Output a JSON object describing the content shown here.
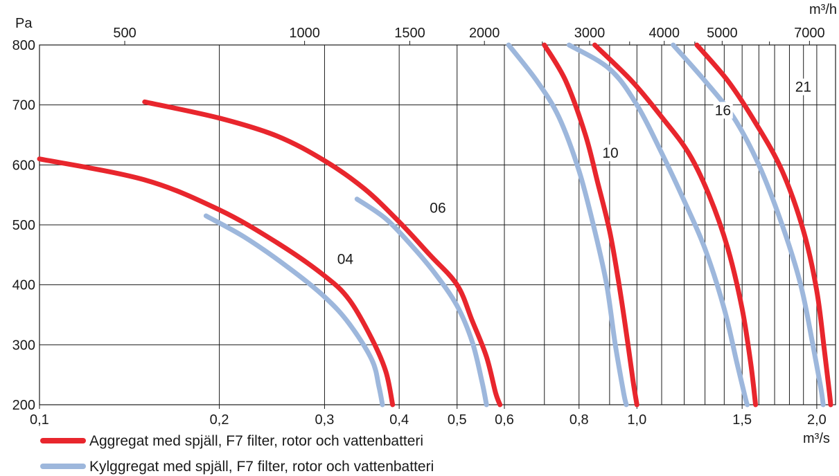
{
  "chart_data": {
    "type": "line",
    "x_scale": "log",
    "xlim": [
      0.1,
      2.15
    ],
    "ylim": [
      200,
      800
    ],
    "grid": true,
    "x_unit": "m³/s",
    "y_unit": "Pa",
    "x2_unit": "m³/h",
    "x_ticks": [
      {
        "value": 0.1,
        "label": "0,1"
      },
      {
        "value": 0.2,
        "label": "0,2"
      },
      {
        "value": 0.3,
        "label": "0,3"
      },
      {
        "value": 0.4,
        "label": "0,4"
      },
      {
        "value": 0.5,
        "label": "0,5"
      },
      {
        "value": 0.6,
        "label": "0,6"
      },
      {
        "value": 0.8,
        "label": "0,8"
      },
      {
        "value": 1.0,
        "label": "1,0"
      },
      {
        "value": 1.5,
        "label": "1,5"
      },
      {
        "value": 2.0,
        "label": "2,0"
      }
    ],
    "x_minor_ticks": [
      0.7,
      0.9,
      1.1,
      1.2,
      1.3,
      1.4,
      1.6,
      1.7,
      1.8,
      1.9
    ],
    "y_ticks": [
      {
        "value": 200,
        "label": "200"
      },
      {
        "value": 300,
        "label": "300"
      },
      {
        "value": 400,
        "label": "400"
      },
      {
        "value": 500,
        "label": "500"
      },
      {
        "value": 600,
        "label": "600"
      },
      {
        "value": 700,
        "label": "700"
      },
      {
        "value": 800,
        "label": "800"
      }
    ],
    "x2_ticks": [
      {
        "value": 500,
        "label": "500"
      },
      {
        "value": 1000,
        "label": "1000"
      },
      {
        "value": 1500,
        "label": "1500"
      },
      {
        "value": 2000,
        "label": "2000"
      },
      {
        "value": 3000,
        "label": "3000"
      },
      {
        "value": 4000,
        "label": "4000"
      },
      {
        "value": 5000,
        "label": "5000"
      },
      {
        "value": 7000,
        "label": "7000"
      }
    ],
    "x2_minor_ticks": [
      2500,
      3500,
      4500,
      6000
    ],
    "series": [
      {
        "group": "aggregat",
        "color": "#e8262d",
        "tag": "04",
        "points": [
          [
            0.1,
            610
          ],
          [
            0.15,
            575
          ],
          [
            0.2,
            525
          ],
          [
            0.25,
            470
          ],
          [
            0.3,
            415
          ],
          [
            0.33,
            375
          ],
          [
            0.36,
            310
          ],
          [
            0.38,
            255
          ],
          [
            0.39,
            200
          ]
        ]
      },
      {
        "group": "kylaggregat",
        "color": "#9db7dc",
        "tag": "04",
        "points": [
          [
            0.19,
            515
          ],
          [
            0.22,
            480
          ],
          [
            0.26,
            430
          ],
          [
            0.3,
            380
          ],
          [
            0.33,
            335
          ],
          [
            0.36,
            275
          ],
          [
            0.37,
            230
          ],
          [
            0.375,
            200
          ]
        ]
      },
      {
        "group": "aggregat",
        "color": "#e8262d",
        "tag": "06",
        "points": [
          [
            0.15,
            705
          ],
          [
            0.2,
            678
          ],
          [
            0.25,
            648
          ],
          [
            0.3,
            607
          ],
          [
            0.35,
            560
          ],
          [
            0.4,
            505
          ],
          [
            0.45,
            450
          ],
          [
            0.5,
            400
          ],
          [
            0.53,
            340
          ],
          [
            0.56,
            280
          ],
          [
            0.58,
            220
          ],
          [
            0.59,
            200
          ]
        ]
      },
      {
        "group": "kylaggregat",
        "color": "#9db7dc",
        "tag": "06",
        "points": [
          [
            0.34,
            543
          ],
          [
            0.38,
            510
          ],
          [
            0.42,
            465
          ],
          [
            0.46,
            418
          ],
          [
            0.5,
            365
          ],
          [
            0.53,
            305
          ],
          [
            0.55,
            240
          ],
          [
            0.56,
            200
          ]
        ]
      },
      {
        "group": "kylaggregat",
        "color": "#9db7dc",
        "tag": "10",
        "points": [
          [
            0.61,
            800
          ],
          [
            0.68,
            740
          ],
          [
            0.74,
            680
          ],
          [
            0.8,
            590
          ],
          [
            0.85,
            490
          ],
          [
            0.89,
            400
          ],
          [
            0.92,
            300
          ],
          [
            0.95,
            220
          ],
          [
            0.96,
            200
          ]
        ]
      },
      {
        "group": "aggregat",
        "color": "#e8262d",
        "tag": "10",
        "points": [
          [
            0.7,
            800
          ],
          [
            0.76,
            740
          ],
          [
            0.82,
            650
          ],
          [
            0.86,
            570
          ],
          [
            0.9,
            490
          ],
          [
            0.93,
            410
          ],
          [
            0.96,
            320
          ],
          [
            0.985,
            240
          ],
          [
            1.0,
            200
          ]
        ]
      },
      {
        "group": "kylaggregat",
        "color": "#9db7dc",
        "tag": "16",
        "points": [
          [
            0.77,
            800
          ],
          [
            0.9,
            760
          ],
          [
            1.0,
            700
          ],
          [
            1.1,
            620
          ],
          [
            1.2,
            540
          ],
          [
            1.3,
            460
          ],
          [
            1.4,
            360
          ],
          [
            1.47,
            270
          ],
          [
            1.52,
            210
          ],
          [
            1.53,
            200
          ]
        ]
      },
      {
        "group": "aggregat",
        "color": "#e8262d",
        "tag": "16",
        "points": [
          [
            0.85,
            800
          ],
          [
            0.98,
            740
          ],
          [
            1.1,
            680
          ],
          [
            1.22,
            620
          ],
          [
            1.32,
            550
          ],
          [
            1.42,
            460
          ],
          [
            1.5,
            360
          ],
          [
            1.55,
            270
          ],
          [
            1.58,
            200
          ]
        ]
      },
      {
        "group": "kylaggregat",
        "color": "#9db7dc",
        "tag": "21",
        "points": [
          [
            1.15,
            800
          ],
          [
            1.3,
            740
          ],
          [
            1.45,
            680
          ],
          [
            1.6,
            600
          ],
          [
            1.75,
            500
          ],
          [
            1.88,
            400
          ],
          [
            1.97,
            300
          ],
          [
            2.03,
            230
          ],
          [
            2.05,
            200
          ]
        ]
      },
      {
        "group": "aggregat",
        "color": "#e8262d",
        "tag": "21",
        "points": [
          [
            1.26,
            800
          ],
          [
            1.42,
            740
          ],
          [
            1.58,
            670
          ],
          [
            1.75,
            590
          ],
          [
            1.9,
            490
          ],
          [
            2.0,
            390
          ],
          [
            2.06,
            290
          ],
          [
            2.1,
            220
          ],
          [
            2.11,
            200
          ]
        ]
      }
    ],
    "curve_labels": [
      {
        "text": "04",
        "x": 0.315,
        "y": 435
      },
      {
        "text": "06",
        "x": 0.45,
        "y": 520
      },
      {
        "text": "10",
        "x": 0.875,
        "y": 612
      },
      {
        "text": "16",
        "x": 1.35,
        "y": 683
      },
      {
        "text": "21",
        "x": 1.84,
        "y": 722
      }
    ],
    "legend": [
      {
        "key": "aggregat",
        "label": "Aggregat med spjäll, F7 filter, rotor och vattenbatteri",
        "color": "#e8262d"
      },
      {
        "key": "kylaggregat",
        "label": "Kylggregat med spjäll, F7 filter, rotor och vattenbatteri",
        "color": "#9db7dc"
      }
    ]
  }
}
